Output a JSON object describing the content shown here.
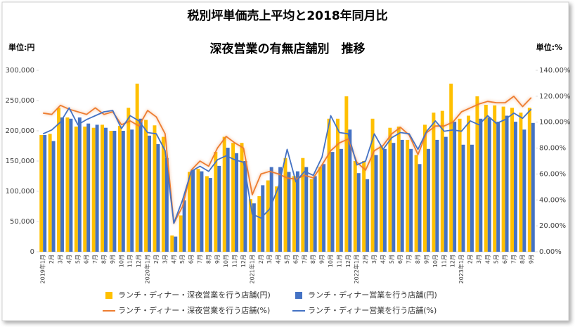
{
  "chart_data": {
    "type": "bar",
    "title": "税別坪単価売上平均と2018年同月比",
    "subtitle": "深夜営業の有無店舗別　推移",
    "y_label": "単位:円",
    "y2_label": "単位:%",
    "categories": [
      "2019年1月",
      "2月",
      "3月",
      "4月",
      "5月",
      "6月",
      "7月",
      "8月",
      "9月",
      "10月",
      "11月",
      "12月",
      "2020年1月",
      "2月",
      "3月",
      "4月",
      "5月",
      "6月",
      "7月",
      "8月",
      "9月",
      "10月",
      "11月",
      "12月",
      "2021年1月",
      "2月",
      "3月",
      "4月",
      "5月",
      "6月",
      "7月",
      "8月",
      "9月",
      "10月",
      "11月",
      "12月",
      "2022年1月",
      "2月",
      "3月",
      "4月",
      "5月",
      "6月",
      "7月",
      "8月",
      "9月",
      "10月",
      "11月",
      "12月",
      "2023年1月",
      "2月",
      "3月",
      "4月",
      "5月",
      "6月",
      "7月",
      "8月",
      "9月"
    ],
    "series": [
      {
        "name": "ランチ・ディナー・深夜営業を行う店舗(円)",
        "type": "bar",
        "color": "#FFC000",
        "values": [
          193000,
          195000,
          238000,
          222000,
          207000,
          207000,
          205000,
          210000,
          200000,
          208000,
          238000,
          278000,
          218000,
          209000,
          190000,
          27000,
          60000,
          132000,
          137000,
          125000,
          165000,
          190000,
          180000,
          180000,
          87000,
          92000,
          118000,
          108000,
          155000,
          125000,
          155000,
          120000,
          140000,
          220000,
          220000,
          257000,
          150000,
          150000,
          220000,
          175000,
          205000,
          207000,
          185000,
          160000,
          210000,
          230000,
          233000,
          278000,
          220000,
          225000,
          257000,
          243000,
          242000,
          240000,
          238000,
          230000,
          238000
        ]
      },
      {
        "name": "ランチ・ディナー営業を行う店舗(円)",
        "type": "bar",
        "color": "#4472C4",
        "values": [
          193000,
          183000,
          222000,
          220000,
          222000,
          212000,
          210000,
          205000,
          200000,
          200000,
          202000,
          220000,
          192000,
          178000,
          155000,
          25000,
          85000,
          135000,
          133000,
          122000,
          142000,
          172000,
          163000,
          150000,
          80000,
          110000,
          140000,
          140000,
          132000,
          133000,
          140000,
          125000,
          145000,
          165000,
          170000,
          202000,
          130000,
          120000,
          160000,
          170000,
          180000,
          185000,
          170000,
          145000,
          170000,
          185000,
          190000,
          215000,
          177000,
          177000,
          220000,
          222000,
          215000,
          225000,
          215000,
          202000,
          213000
        ]
      },
      {
        "name": "ランチ・ディナー・深夜営業を行う店舗(%)",
        "type": "line",
        "axis": "y2",
        "color": "#ED7D31",
        "values": [
          107,
          106,
          113,
          110,
          108,
          106,
          111,
          106,
          108,
          98,
          101,
          97,
          109,
          104,
          91,
          22,
          35,
          63,
          70,
          66,
          80,
          89,
          84,
          80,
          44,
          60,
          62,
          60,
          57,
          56,
          59,
          57,
          67,
          78,
          84,
          87,
          69,
          63,
          78,
          82,
          91,
          96,
          90,
          75,
          92,
          97,
          97,
          100,
          108,
          111,
          114,
          116,
          115,
          115,
          120,
          112,
          119
        ]
      },
      {
        "name": "ランチ・ディナー営業を行う店舗(%)",
        "type": "line",
        "axis": "y2",
        "color": "#4472C4",
        "values": [
          91,
          94,
          100,
          111,
          98,
          102,
          105,
          108,
          109,
          95,
          105,
          101,
          92,
          91,
          78,
          22,
          40,
          62,
          66,
          62,
          71,
          74,
          71,
          69,
          29,
          26,
          33,
          50,
          79,
          54,
          62,
          59,
          73,
          105,
          92,
          91,
          67,
          70,
          91,
          79,
          88,
          92,
          91,
          79,
          93,
          101,
          93,
          94,
          93,
          101,
          98,
          105,
          99,
          102,
          107,
          103,
          110
        ]
      }
    ],
    "ylim": [
      0,
      300000
    ],
    "yticks": [
      0,
      {
        "value": 50000,
        "label": "50,000"
      },
      {
        "value": 100000,
        "label": "100,000"
      },
      {
        "value": 150000,
        "label": "150,000"
      },
      {
        "value": 200000,
        "label": "200,000"
      },
      {
        "value": 250000,
        "label": "250,000"
      },
      {
        "value": 300000,
        "label": "300,000"
      }
    ],
    "y2lim": [
      0,
      140
    ],
    "y2ticks": [
      {
        "value": 0,
        "label": "0.00%"
      },
      {
        "value": 20,
        "label": "20.00%"
      },
      {
        "value": 40,
        "label": "40.00%"
      },
      {
        "value": 60,
        "label": "60.00%"
      },
      {
        "value": 80,
        "label": "80.00%"
      },
      {
        "value": 100,
        "label": "100.00%"
      },
      {
        "value": 120,
        "label": "120.00%"
      },
      {
        "value": 140,
        "label": "140.00%"
      }
    ],
    "legend": "bottom"
  }
}
